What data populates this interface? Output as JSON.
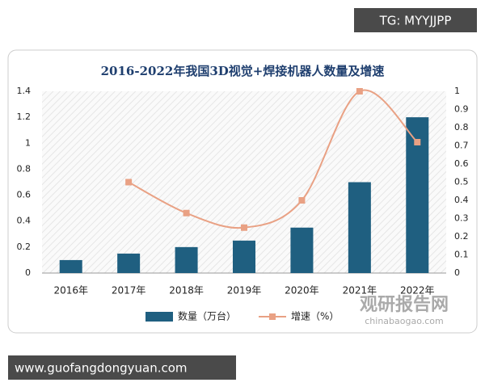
{
  "chart_data": {
    "type": "bar_line",
    "title": "2016-2022年我国3D视觉+焊接机器人数量及增速",
    "categories": [
      "2016年",
      "2017年",
      "2018年",
      "2019年",
      "2020年",
      "2021年",
      "2022年"
    ],
    "series": [
      {
        "name": "数量（万台）",
        "type": "bar",
        "color": "#1f5f80",
        "values": [
          0.1,
          0.15,
          0.2,
          0.25,
          0.35,
          0.7,
          1.2
        ]
      },
      {
        "name": "增速（%）",
        "type": "line",
        "axis": "y2",
        "color": "#e9a184",
        "values": [
          null,
          0.5,
          0.33,
          0.25,
          0.4,
          1.0,
          0.72
        ]
      }
    ],
    "ylim": [
      0,
      1.4
    ],
    "yticks": [
      0,
      0.2,
      0.4,
      0.6,
      0.8,
      1,
      1.2,
      1.4
    ],
    "y2lim": [
      0,
      1
    ],
    "y2ticks": [
      0,
      0.1,
      0.2,
      0.3,
      0.4,
      0.5,
      0.6,
      0.7,
      0.8,
      0.9,
      1
    ],
    "legend": "bottom"
  },
  "overlays": {
    "tag": "TG: MYYJJPP",
    "site": "www.guofangdongyuan.com",
    "logo_cn": "观研报告网",
    "logo_en": "chinabaogao.com"
  }
}
